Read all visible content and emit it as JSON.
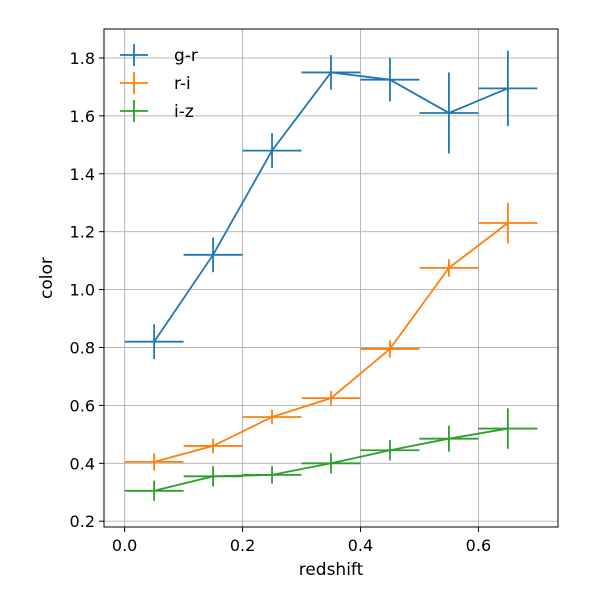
{
  "chart_data": {
    "type": "line",
    "title": "",
    "xlabel": "redshift",
    "ylabel": "color",
    "xlim": [
      -0.035,
      0.735
    ],
    "ylim": [
      0.18,
      1.9
    ],
    "xticks": [
      0.0,
      0.2,
      0.4,
      0.6
    ],
    "xtick_labels": [
      "0.0",
      "0.2",
      "0.4",
      "0.6"
    ],
    "yticks": [
      0.2,
      0.4,
      0.6,
      0.8,
      1.0,
      1.2,
      1.4,
      1.6,
      1.8
    ],
    "ytick_labels": [
      "0.2",
      "0.4",
      "0.6",
      "0.8",
      "1.0",
      "1.2",
      "1.4",
      "1.6",
      "1.8"
    ],
    "grid": true,
    "legend_position": "top-left",
    "x": [
      0.05,
      0.15,
      0.25,
      0.35,
      0.45,
      0.55,
      0.65
    ],
    "xerr": 0.05,
    "series": [
      {
        "name": "g-r",
        "color": "#1f77b4",
        "values": [
          0.82,
          1.12,
          1.48,
          1.75,
          1.725,
          1.61,
          1.695
        ],
        "yerr": [
          0.06,
          0.06,
          0.06,
          0.06,
          0.075,
          0.14,
          0.13
        ]
      },
      {
        "name": "r-i",
        "color": "#ff7f0e",
        "values": [
          0.405,
          0.46,
          0.56,
          0.625,
          0.795,
          1.075,
          1.23
        ],
        "yerr": [
          0.03,
          0.025,
          0.025,
          0.025,
          0.03,
          0.03,
          0.07
        ]
      },
      {
        "name": "i-z",
        "color": "#2ca02c",
        "values": [
          0.305,
          0.355,
          0.36,
          0.4,
          0.445,
          0.485,
          0.52
        ],
        "yerr": [
          0.035,
          0.035,
          0.03,
          0.035,
          0.035,
          0.045,
          0.07
        ]
      }
    ]
  }
}
